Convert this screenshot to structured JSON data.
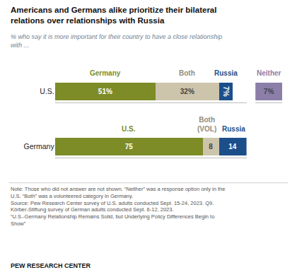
{
  "chart_data": [
    {
      "type": "bar",
      "orientation": "horizontal",
      "stacked": true,
      "title": "Americans and Germans alike prioritize their bilateral\nrelations over relationships with Russia",
      "subtitle": "% who say it is more important for their country to have a close relationship\nwith ...",
      "categories": [
        "U.S."
      ],
      "series": [
        {
          "name": "Germany",
          "color": "#7d8c27",
          "values": [
            51
          ],
          "value_labels": [
            "51%"
          ]
        },
        {
          "name": "Both",
          "color": "#ccc5ab",
          "values": [
            32
          ],
          "value_labels": [
            "32%"
          ]
        },
        {
          "name": "Russia",
          "color": "#1c4e8a",
          "values": [
            7
          ],
          "value_labels": [
            "7%"
          ]
        }
      ],
      "xlim": [
        0,
        97
      ],
      "data_labels": true,
      "tick_labels": "y",
      "grid": false,
      "annotations": [
        "Note: Those who did not answer are not shown. “Neither” was a response option only in the\nU.S. “Both” was a volunteered category in Germany.\nSource: Pew Research Center survey of U.S. adults conducted Sept. 15-24, 2023. Q9.\nKörber-Stiftung survey of German adults conducted Sept. 6-12, 2023.\n“U.S.-Germany Relationship Remains Solid, but Underlying Policy Differences Begin to\nShow”",
        "PEW RESEARCH CENTER"
      ]
    },
    {
      "type": "bar",
      "orientation": "horizontal",
      "stacked": true,
      "categories": [
        "Germany"
      ],
      "series": [
        {
          "name": "U.S.",
          "color": "#7d8c27",
          "values": [
            75
          ]
        },
        {
          "name": "Both\n(VOL)",
          "color": "#ccc5ab",
          "values": [
            8
          ]
        },
        {
          "name": "Russia",
          "color": "#1c4e8a",
          "values": [
            14
          ]
        }
      ],
      "xlim": [
        0,
        97
      ],
      "data_labels": true,
      "tick_labels": "y",
      "grid": false
    },
    {
      "type": "bar",
      "orientation": "horizontal",
      "stacked": true,
      "categories": [
        null
      ],
      "series": [
        {
          "name": "Neither",
          "color": "#8b7ea8",
          "values": [
            7
          ],
          "value_labels": [
            "7%"
          ]
        }
      ],
      "xlim": [
        0,
        7
      ],
      "data_labels": true,
      "tick_labels": false,
      "grid": false
    }
  ]
}
